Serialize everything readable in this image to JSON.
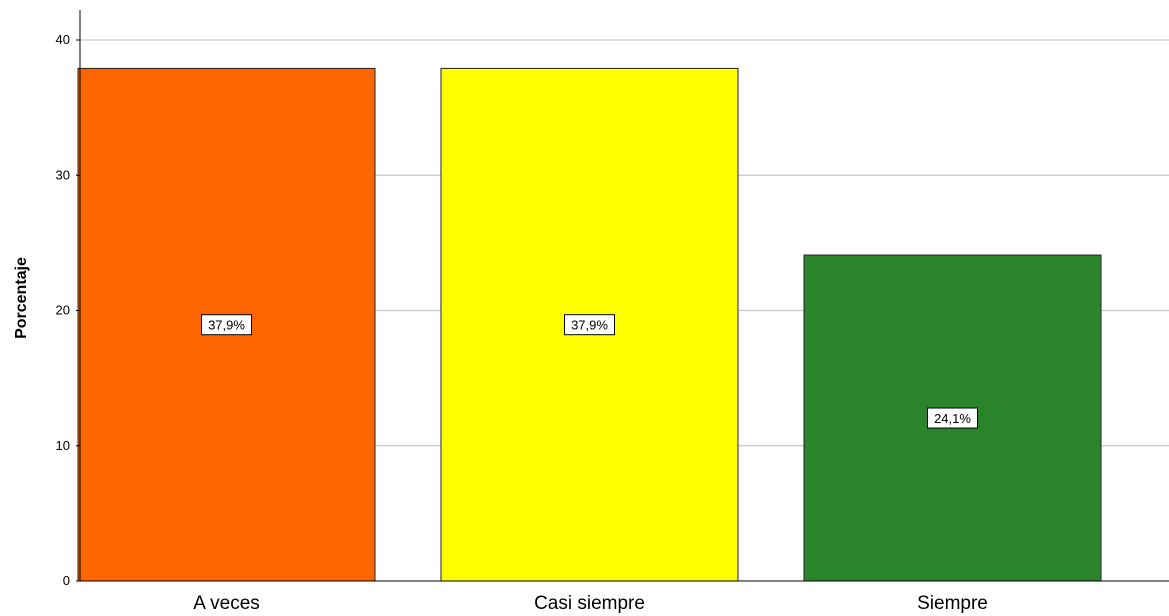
{
  "chart_data": {
    "type": "bar",
    "categories": [
      "A veces",
      "Casi siempre",
      "Siempre"
    ],
    "values": [
      37.9,
      37.9,
      24.1
    ],
    "data_labels": [
      "37,9%",
      "37,9%",
      "24,1%"
    ],
    "colors": [
      "#ff6600",
      "#ffff00",
      "#2a852a"
    ],
    "title": "",
    "xlabel": "",
    "ylabel": "Porcentaje",
    "ylim": [
      0,
      40
    ],
    "yticks": [
      0,
      10,
      20,
      30,
      40
    ],
    "ytick_labels": [
      "0",
      "10",
      "20",
      "30",
      "40"
    ],
    "grid": "horizontal",
    "legend": "none"
  }
}
